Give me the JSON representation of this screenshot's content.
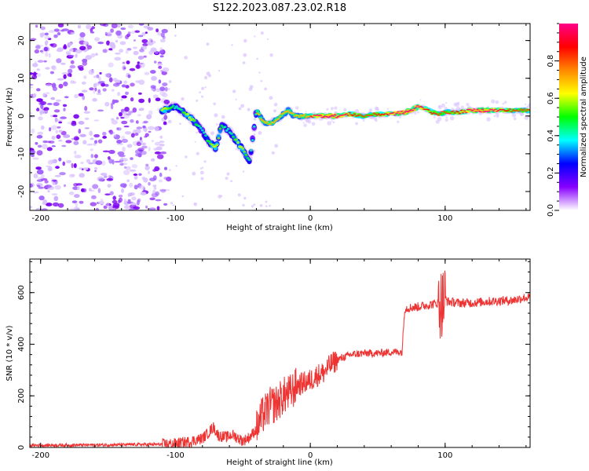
{
  "figure": {
    "title": "S122.2023.087.23.02.R18"
  },
  "chart_data": [
    {
      "id": "spectrogram",
      "type": "heatmap",
      "xlabel": "Height of straight line (km)",
      "ylabel": "Frequency (Hz)",
      "xlim": [
        -208,
        163
      ],
      "ylim": [
        -25,
        24.5
      ],
      "xticks": [
        -200,
        -100,
        0,
        100
      ],
      "xtick_labels": [
        "-200",
        "-100",
        "0",
        "100"
      ],
      "yticks": [
        -20,
        -10,
        0,
        10,
        20
      ],
      "ytick_labels": [
        "-20",
        "-10",
        "0",
        "10",
        "20"
      ],
      "ridge": {
        "x": [
          -110,
          -100,
          -92,
          -86,
          -80,
          -75,
          -70,
          -66,
          -60,
          -55,
          -50,
          -45,
          -40,
          -35,
          -30,
          -25,
          -20,
          -16,
          -12,
          -5,
          0,
          10,
          20,
          30,
          40,
          50,
          60,
          70,
          75,
          80,
          85,
          90,
          95,
          100,
          105,
          110,
          120,
          130,
          140,
          150,
          163
        ],
        "y": [
          1.5,
          2.5,
          0.5,
          -1.5,
          -4,
          -7,
          -8.5,
          -2.5,
          -4,
          -6.5,
          -9,
          -12,
          1.5,
          -1.5,
          -2,
          -1,
          0.5,
          1.5,
          0,
          0,
          0,
          0,
          0,
          0.5,
          0,
          0.5,
          0.5,
          1,
          1.5,
          2.5,
          2,
          1,
          0.5,
          1,
          1,
          1,
          1.5,
          1.5,
          1.5,
          1.5,
          1.5
        ]
      },
      "noise_region_x": [
        -208,
        -105
      ]
    },
    {
      "id": "colorbar",
      "type": "colorbar",
      "label": "Normalized spectral amplitude",
      "range": [
        0,
        1
      ],
      "ticks": [
        0,
        0.2,
        0.4,
        0.6,
        0.8
      ],
      "tick_labels": [
        "0.0",
        "0.2",
        "0.4",
        "0.6",
        "0.8"
      ],
      "colors": [
        "#ffffff",
        "#8800ff",
        "#0000ff",
        "#00ffff",
        "#00ff00",
        "#ffff00",
        "#ff8800",
        "#ff0000",
        "#ff0088"
      ]
    },
    {
      "id": "snr",
      "type": "line",
      "xlabel": "Height of straight line (km)",
      "ylabel": "SNR (10 * v/v)",
      "xlim": [
        -208,
        163
      ],
      "ylim": [
        0,
        730
      ],
      "xticks": [
        -200,
        -100,
        0,
        100
      ],
      "xtick_labels": [
        "-200",
        "-100",
        "0",
        "100"
      ],
      "yticks": [
        0,
        200,
        400,
        600
      ],
      "ytick_labels": [
        "0",
        "200",
        "400",
        "600"
      ],
      "color": "#ee3333",
      "series": [
        {
          "name": "SNR",
          "x": [
            -208,
            -150,
            -110,
            -100,
            -90,
            -80,
            -75,
            -72,
            -68,
            -62,
            -58,
            -50,
            -45,
            -40,
            -36,
            -30,
            -25,
            -20,
            -15,
            -10,
            -5,
            0,
            5,
            10,
            15,
            20,
            25,
            30,
            40,
            50,
            60,
            68,
            70,
            72,
            80,
            90,
            95,
            98,
            100,
            102,
            110,
            120,
            130,
            140,
            150,
            158,
            163
          ],
          "y": [
            8,
            10,
            12,
            15,
            22,
            35,
            60,
            80,
            45,
            40,
            50,
            25,
            40,
            70,
            120,
            160,
            170,
            200,
            210,
            240,
            250,
            260,
            280,
            290,
            320,
            340,
            350,
            360,
            365,
            365,
            370,
            370,
            540,
            540,
            545,
            555,
            560,
            560,
            580,
            565,
            560,
            560,
            565,
            568,
            570,
            580,
            580
          ]
        }
      ]
    }
  ]
}
